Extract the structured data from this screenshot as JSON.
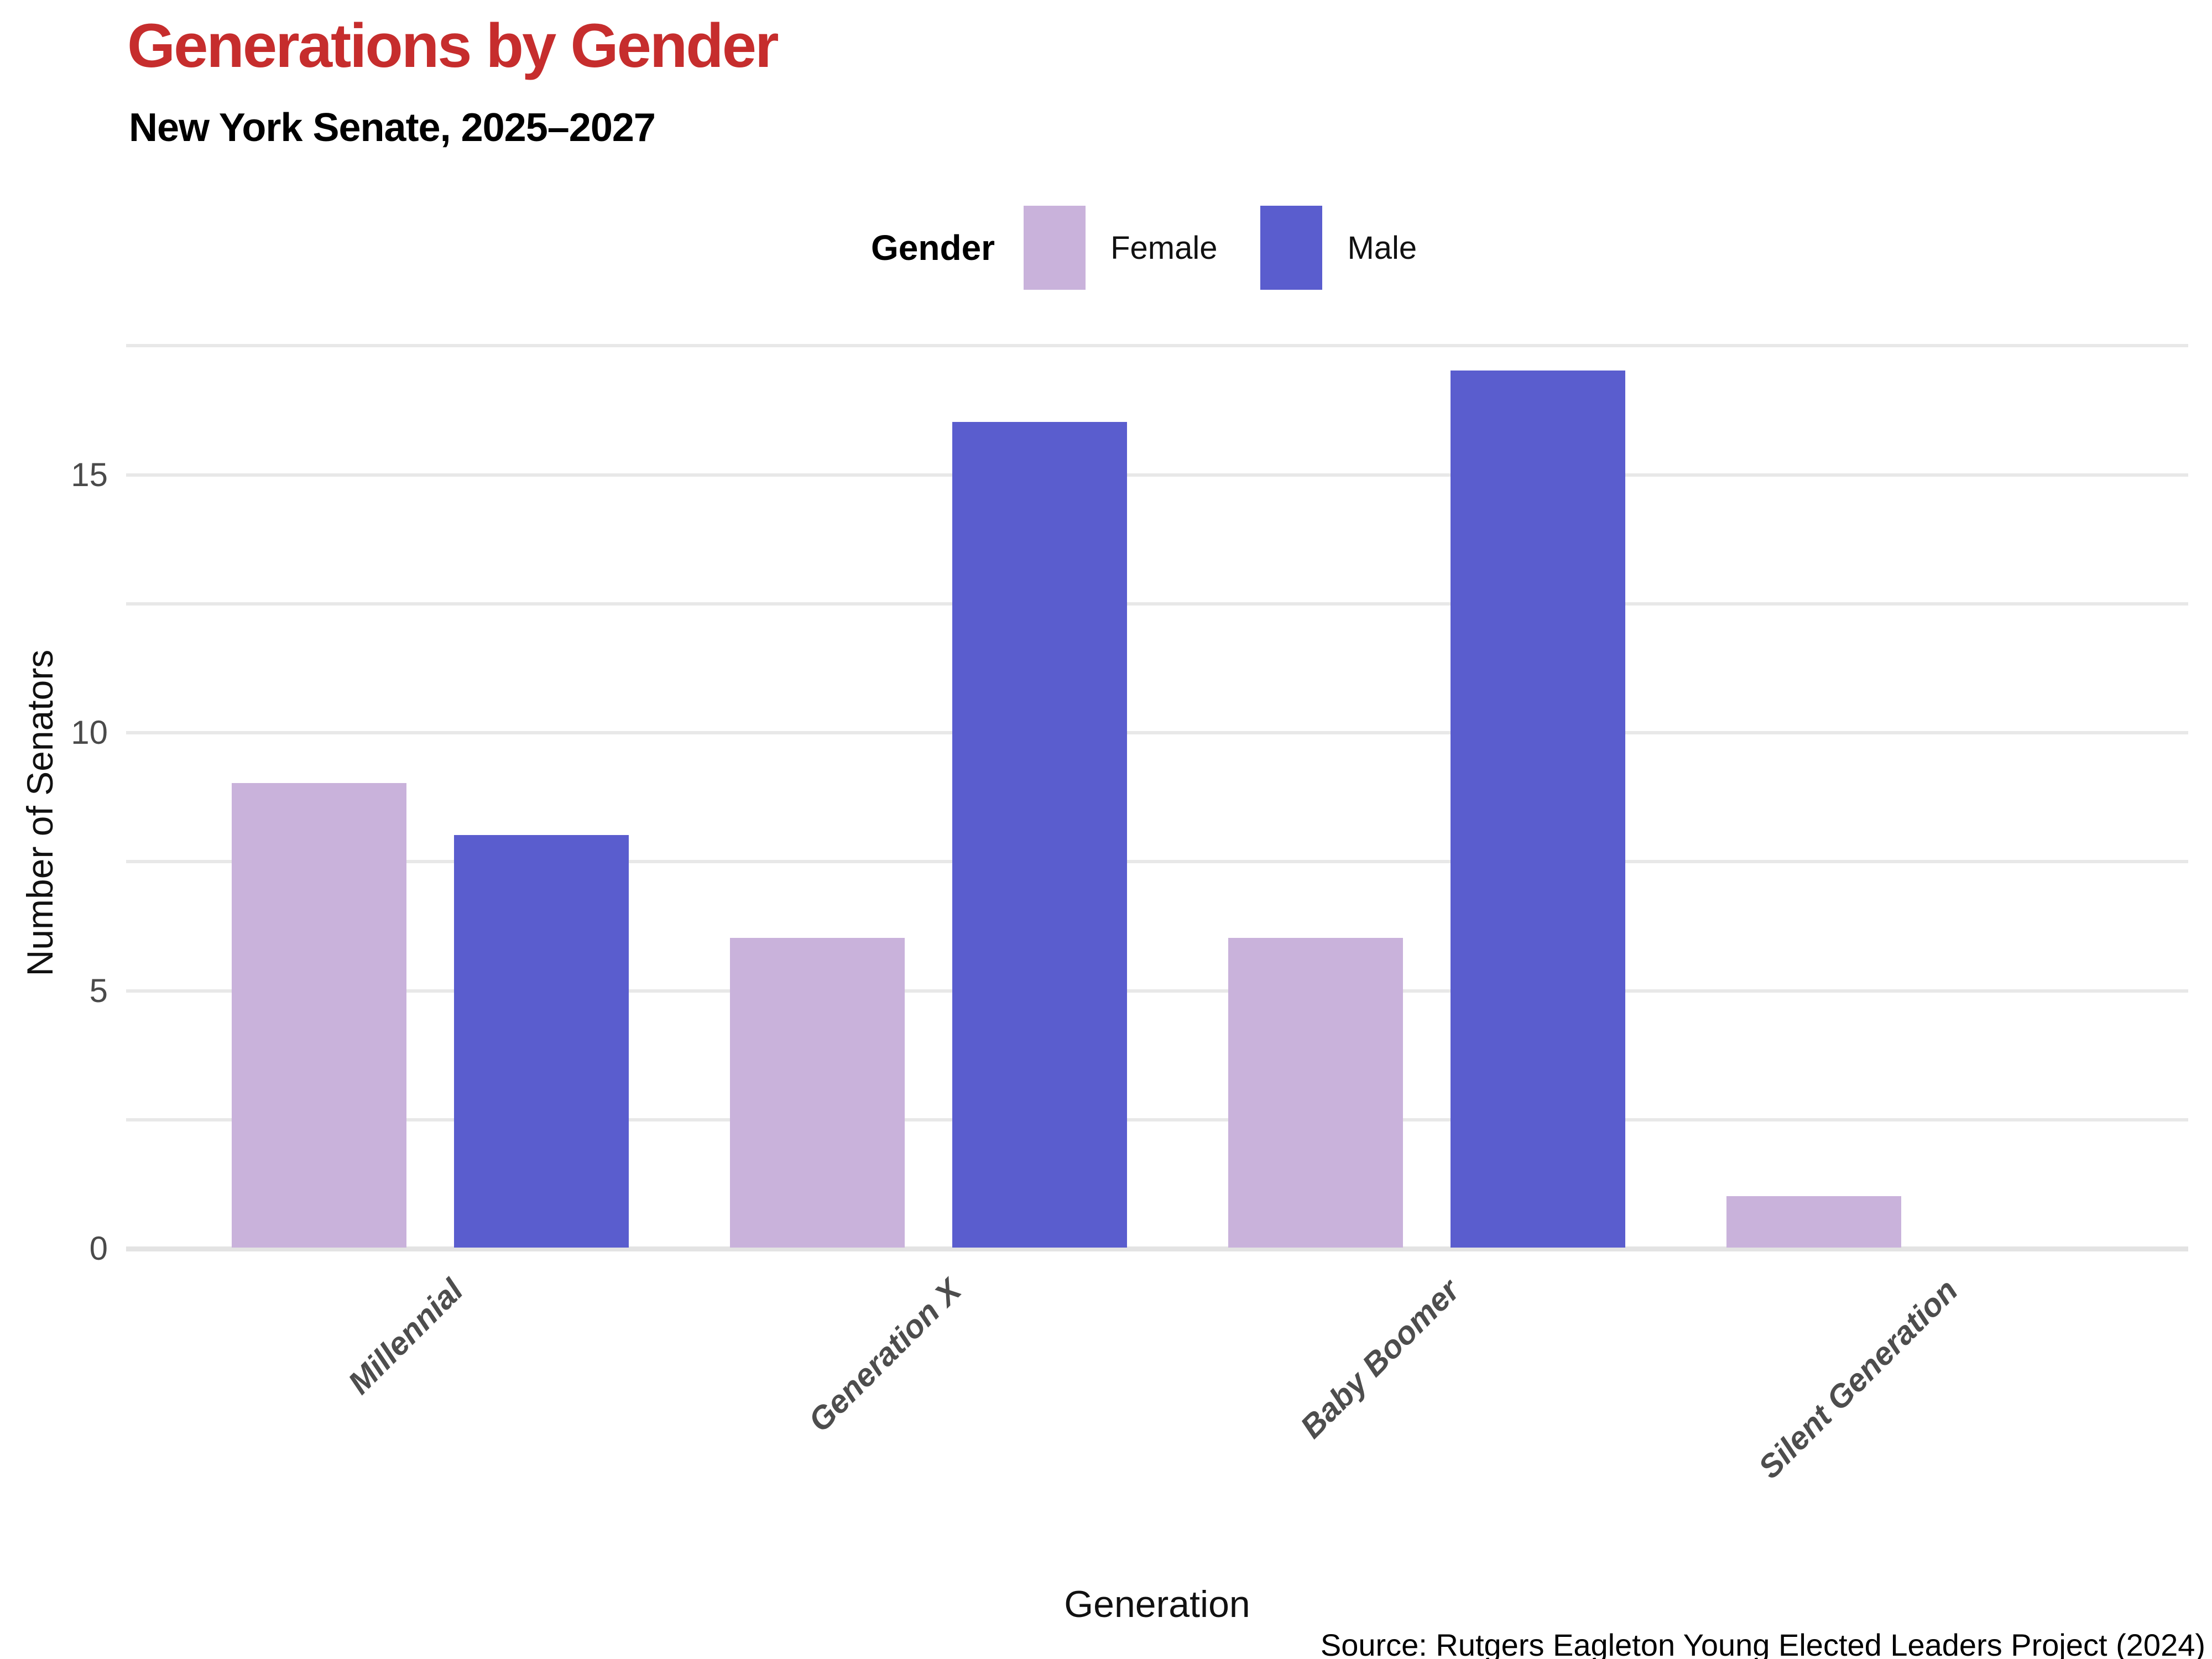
{
  "chart_data": {
    "type": "bar",
    "title": "Generations by Gender",
    "subtitle": "New York Senate, 2025–2027",
    "legend_title": "Gender",
    "categories": [
      "Millennial",
      "Generation X",
      "Baby Boomer",
      "Silent Generation"
    ],
    "series": [
      {
        "name": "Female",
        "color": "#c9b2db",
        "values": [
          9,
          6,
          6,
          1
        ]
      },
      {
        "name": "Male",
        "color": "#5a5dce",
        "values": [
          8,
          16,
          17,
          0
        ]
      }
    ],
    "xlabel": "Generation",
    "ylabel": "Number of Senators",
    "ylim": [
      0,
      17.5
    ],
    "yticks": [
      0,
      5,
      10,
      15
    ],
    "minor_gridline_step": 2.5,
    "grid": true,
    "legend_position": "top-center",
    "x_label_rotation_degrees": 45,
    "source": "Source: Rutgers Eagleton Young Elected Leaders Project (2024)",
    "colors": {
      "title_accent": "#c62d2d",
      "gridline": "#e8e8e8",
      "axis_baseline": "#e3e3e3",
      "tick_text": "#4a4a4a",
      "category_text": "#4d4d4d"
    }
  }
}
